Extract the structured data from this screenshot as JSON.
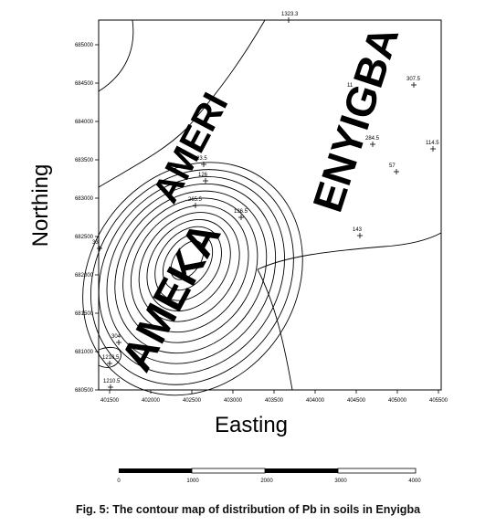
{
  "map": {
    "axes": {
      "x_label": "Easting",
      "y_label": "Northing",
      "x_ticks": [
        "401500",
        "402000",
        "402500",
        "403000",
        "403500",
        "404000",
        "404500",
        "405000",
        "405500"
      ],
      "y_ticks": [
        "680500",
        "681000",
        "681500",
        "682000",
        "682500",
        "683000",
        "683500",
        "684000",
        "684500",
        "685000"
      ]
    },
    "place_names": [
      "AMERI",
      "ENYIGBA",
      "AMEKA"
    ],
    "samples": [
      {
        "label": "1323.3"
      },
      {
        "label": "11"
      },
      {
        "label": "307.5"
      },
      {
        "label": "284.5"
      },
      {
        "label": "114.5"
      },
      {
        "label": "57"
      },
      {
        "label": "23.5"
      },
      {
        "label": "126"
      },
      {
        "label": "265.5"
      },
      {
        "label": "136.5"
      },
      {
        "label": "143"
      },
      {
        "label": "33"
      },
      {
        "label": "304"
      },
      {
        "label": "1210.5"
      },
      {
        "label": "1210.5"
      }
    ],
    "scale_bar": {
      "ticks": [
        "0",
        "1000",
        "2000",
        "3000",
        "4000"
      ]
    }
  },
  "caption": "Fig. 5: The contour map of distribution of Pb in soils in Enyigba"
}
